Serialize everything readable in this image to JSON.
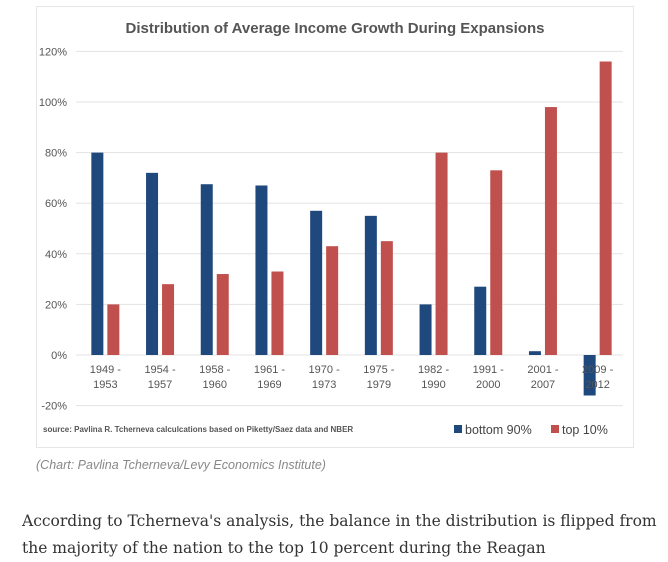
{
  "chart_data": {
    "type": "bar",
    "title": "Distribution of Average Income Growth During Expansions",
    "categories": [
      [
        "1949 -",
        "1953"
      ],
      [
        "1954 -",
        "1957"
      ],
      [
        "1958 -",
        "1960"
      ],
      [
        "1961 -",
        "1969"
      ],
      [
        "1970 -",
        "1973"
      ],
      [
        "1975 -",
        "1979"
      ],
      [
        "1982 -",
        "1990"
      ],
      [
        "1991 -",
        "2000"
      ],
      [
        "2001 -",
        "2007"
      ],
      [
        "2009 -",
        "2012"
      ]
    ],
    "series": [
      {
        "name": "bottom 90%",
        "color": "#1f487c",
        "values": [
          80,
          72,
          67.5,
          67,
          57,
          55,
          20,
          27,
          1.5,
          -16
        ]
      },
      {
        "name": "top 10%",
        "color": "#c0504d",
        "values": [
          20,
          28,
          32,
          33,
          43,
          45,
          80,
          73,
          98,
          116
        ]
      }
    ],
    "yticks": [
      "-20%",
      "0%",
      "20%",
      "40%",
      "60%",
      "80%",
      "100%",
      "120%"
    ],
    "ylim": [
      -20,
      120
    ],
    "grid": true,
    "legend": "bottom-right",
    "source": "source: Pavlina R. Tcherneva calculcations based on Piketty/Saez data and NBER"
  },
  "caption": "(Chart: Pavlina Tcherneva/Levy Economics Institute)",
  "body_text": "According to Tcherneva's analysis, the balance in the distribution is flipped from the majority of the nation to the top 10 percent during the Reagan"
}
